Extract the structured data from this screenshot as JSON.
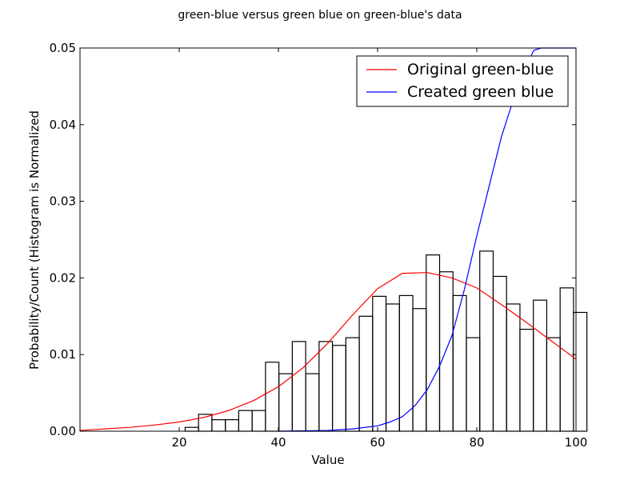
{
  "chart_data": {
    "type": "histogram",
    "title": "green-blue versus green blue on green-blue's data",
    "xlabel": "Value",
    "ylabel": "Probability/Count (Histogram is Normalized",
    "xlim": [
      0,
      100
    ],
    "ylim": [
      0,
      0.05
    ],
    "xticks": [
      20,
      40,
      60,
      80,
      100
    ],
    "xtick_labels": [
      "20",
      "40",
      "60",
      "80",
      "100"
    ],
    "yticks": [
      0.0,
      0.01,
      0.02,
      0.03,
      0.04,
      0.05
    ],
    "ytick_labels": [
      "0.00",
      "0.01",
      "0.02",
      "0.03",
      "0.04",
      "0.05"
    ],
    "grid": false,
    "legend_position": "top-right",
    "histogram": {
      "bin_edges": [
        21.2,
        23.9,
        26.6,
        29.3,
        32.0,
        34.7,
        37.4,
        40.1,
        42.8,
        45.5,
        48.2,
        50.9,
        53.6,
        56.3,
        59.0,
        61.7,
        64.4,
        67.1,
        69.8,
        72.5,
        75.2,
        77.9,
        80.6,
        83.3,
        86.0,
        88.7,
        91.4,
        94.1,
        96.8,
        99.5
      ],
      "values": [
        0.0005,
        0.0022,
        0.0015,
        0.0015,
        0.0027,
        0.0027,
        0.009,
        0.0075,
        0.0117,
        0.0075,
        0.0117,
        0.0112,
        0.0122,
        0.015,
        0.0176,
        0.0166,
        0.0177,
        0.016,
        0.023,
        0.0208,
        0.0177,
        0.0122,
        0.0235,
        0.0202,
        0.0166,
        0.0133,
        0.0171,
        0.0122,
        0.0187,
        0.0155
      ],
      "edge_color": "#000000"
    },
    "series": [
      {
        "name": "Original green-blue",
        "color": "#ff0000",
        "x": [
          0,
          5,
          10,
          15,
          20,
          25,
          30,
          35,
          40,
          45,
          50,
          55,
          60,
          65,
          70,
          75,
          80,
          85,
          90,
          95,
          100
        ],
        "y": [
          0.0001,
          0.0003,
          0.0005,
          0.0008,
          0.0012,
          0.0018,
          0.0027,
          0.004,
          0.0058,
          0.0083,
          0.0115,
          0.0152,
          0.0186,
          0.0206,
          0.0207,
          0.02,
          0.0187,
          0.0165,
          0.0142,
          0.0118,
          0.0094
        ]
      },
      {
        "name": "Created green blue",
        "color": "#0000ff",
        "x": [
          40,
          50,
          55,
          60,
          62.5,
          65,
          67.5,
          70,
          72.5,
          75,
          77.5,
          80,
          82.5,
          85,
          87.5,
          90,
          91.5,
          93,
          95,
          100
        ],
        "y": [
          0.0,
          0.0001,
          0.0003,
          0.0007,
          0.0012,
          0.0019,
          0.0033,
          0.0054,
          0.0085,
          0.0125,
          0.0185,
          0.0255,
          0.032,
          0.0385,
          0.0435,
          0.0478,
          0.0497,
          0.05,
          0.05,
          0.05
        ]
      }
    ]
  }
}
